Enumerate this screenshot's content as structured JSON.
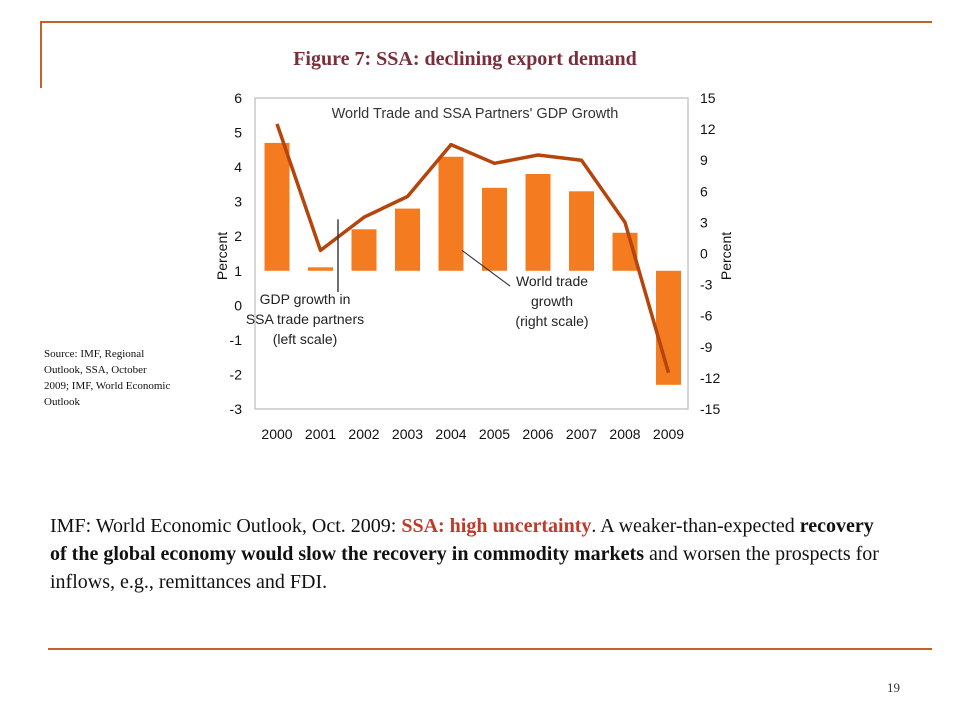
{
  "slide": {
    "title": "Figure 7: SSA: declining export demand",
    "source": "Source: IMF, Regional Outlook, SSA, October 2009; IMF, World Economic Outlook",
    "body": {
      "p1": "IMF: World Economic Outlook, Oct. 2009: ",
      "p2": "SSA: high uncertainty",
      "p3": ". A weaker-than-expected ",
      "p4": "recovery of the global economy would slow the recovery in commodity markets",
      "p5": " and worsen the prospects for inflows, e.g.,  remittances and FDI."
    },
    "page_number": "19"
  },
  "chart_data": {
    "type": "bar",
    "title": "World Trade and SSA Partners' GDP Growth",
    "categories": [
      "2000",
      "2001",
      "2002",
      "2003",
      "2004",
      "2005",
      "2006",
      "2007",
      "2008",
      "2009"
    ],
    "series": [
      {
        "name": "GDP growth in SSA trade partners (left scale)",
        "type": "bar",
        "axis": "left",
        "values": [
          4.7,
          1.1,
          2.2,
          2.8,
          4.3,
          3.4,
          3.8,
          3.3,
          2.1,
          -2.3
        ],
        "color": "#f47b20"
      },
      {
        "name": "World trade growth (right scale)",
        "type": "line",
        "axis": "right",
        "values": [
          12.5,
          0.3,
          3.5,
          5.5,
          10.5,
          8.7,
          9.5,
          9.0,
          3.0,
          -11.5
        ],
        "color": "#b5450b"
      }
    ],
    "y_left": {
      "label": "Percent",
      "min": -3,
      "max": 6,
      "ticks": [
        6,
        5,
        4,
        3,
        2,
        1,
        0,
        -1,
        -2,
        -3
      ]
    },
    "y_right": {
      "label": "Percent",
      "min": -15,
      "max": 15,
      "ticks": [
        15,
        12,
        9,
        6,
        3,
        0,
        -3,
        -6,
        -9,
        -12,
        -15
      ]
    },
    "annotations": {
      "gdp": [
        "GDP growth in",
        "SSA trade partners",
        "(left scale)"
      ],
      "trade": [
        "World trade",
        "growth",
        "(right scale)"
      ]
    },
    "grid": false
  }
}
